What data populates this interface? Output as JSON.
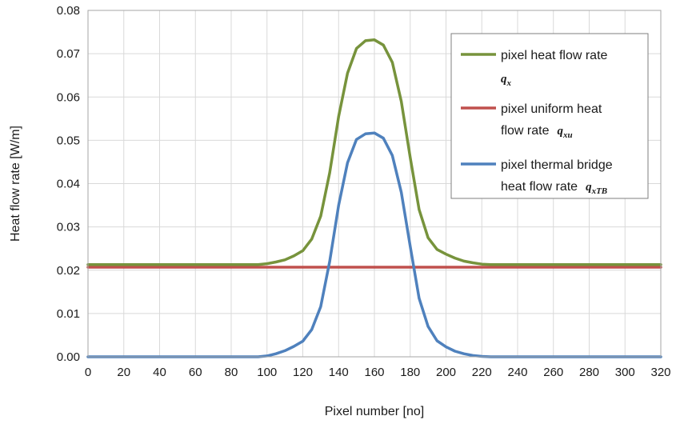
{
  "chart_data": {
    "type": "line",
    "title": "",
    "xlabel": "Pixel number [no]",
    "ylabel": "Heat flow rate [W/m]",
    "xlim": [
      0,
      320
    ],
    "ylim": [
      0,
      0.08
    ],
    "xticks": [
      0,
      20,
      40,
      60,
      80,
      100,
      120,
      140,
      160,
      180,
      200,
      220,
      240,
      260,
      280,
      300,
      320
    ],
    "yticks": [
      0.0,
      0.01,
      0.02,
      0.03,
      0.04,
      0.05,
      0.06,
      0.07,
      0.08
    ],
    "ytick_labels": [
      "0.00",
      "0.01",
      "0.02",
      "0.03",
      "0.04",
      "0.05",
      "0.06",
      "0.07",
      "0.08"
    ],
    "grid": "vertical-and-horizontal",
    "legend_position": "top-right",
    "series": [
      {
        "name": "pixel heat flow rate",
        "symbol": "q",
        "subscript": "x",
        "color": "#77933C",
        "x": [
          0,
          95,
          100,
          105,
          110,
          115,
          120,
          125,
          130,
          135,
          140,
          145,
          150,
          155,
          160,
          165,
          170,
          175,
          180,
          185,
          190,
          195,
          200,
          205,
          210,
          215,
          220,
          225,
          320
        ],
        "y": [
          0.0213,
          0.0213,
          0.0215,
          0.0219,
          0.0224,
          0.0233,
          0.0245,
          0.0272,
          0.0325,
          0.0425,
          0.0555,
          0.0655,
          0.0712,
          0.073,
          0.0732,
          0.072,
          0.068,
          0.059,
          0.046,
          0.034,
          0.0275,
          0.0248,
          0.0237,
          0.0228,
          0.0221,
          0.0217,
          0.0214,
          0.0213,
          0.0213
        ]
      },
      {
        "name": "pixel uniform heat flow rate",
        "symbol": "q",
        "subscript": "xu",
        "color": "#C0504D",
        "x": [
          0,
          320
        ],
        "y": [
          0.0207,
          0.0207
        ]
      },
      {
        "name": "pixel thermal bridge heat flow rate",
        "symbol": "q",
        "subscript": "xTB",
        "color": "#4F81BD",
        "x": [
          0,
          95,
          100,
          105,
          110,
          115,
          120,
          125,
          130,
          135,
          140,
          145,
          150,
          155,
          160,
          165,
          170,
          175,
          180,
          185,
          190,
          195,
          200,
          205,
          210,
          215,
          220,
          225,
          320
        ],
        "y": [
          0,
          0,
          0.0002,
          0.0007,
          0.0014,
          0.0024,
          0.0036,
          0.0063,
          0.0116,
          0.022,
          0.035,
          0.0448,
          0.0502,
          0.0515,
          0.0517,
          0.0505,
          0.0465,
          0.038,
          0.0255,
          0.0135,
          0.007,
          0.0037,
          0.0023,
          0.0013,
          0.0007,
          0.0003,
          0.0001,
          0,
          0
        ]
      }
    ],
    "legend_lines": [
      {
        "text": "pixel heat flow rate",
        "sym": false
      },
      {
        "text": "",
        "sym": true,
        "series": 0
      },
      {
        "text": "pixel uniform heat",
        "sym": false
      },
      {
        "text": "flow rate",
        "sym": true,
        "series": 1
      },
      {
        "text": "pixel thermal bridge",
        "sym": false
      },
      {
        "text": "heat flow rate",
        "sym": true,
        "series": 2
      }
    ]
  }
}
